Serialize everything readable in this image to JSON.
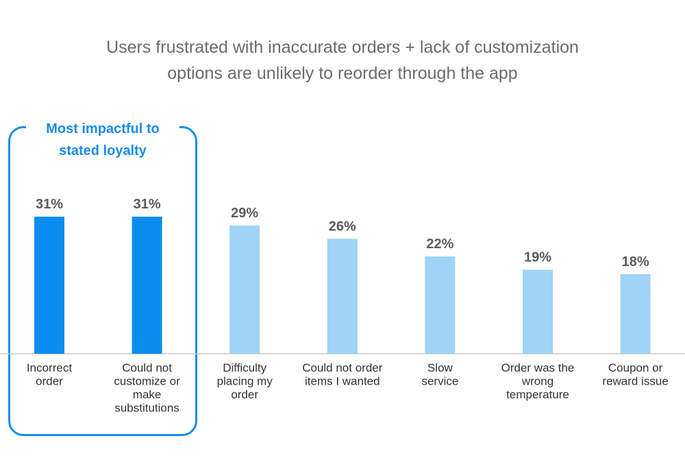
{
  "title_lines": [
    "Users frustrated with inaccurate orders + lack of customization",
    "options are unlikely to reorder through the app"
  ],
  "highlight": {
    "label_lines": [
      "Most impactful to",
      "stated loyalty"
    ],
    "color": "#1a8cea"
  },
  "colors": {
    "highlight_bar": "#0a8ded",
    "normal_bar": "#9fd3f7",
    "baseline": "#cccccc"
  },
  "chart_data": {
    "type": "bar",
    "title": "Users frustrated with inaccurate orders + lack of customization options are unlikely to reorder through the app",
    "xlabel": "",
    "ylabel": "",
    "ylim": [
      0,
      31
    ],
    "grid": false,
    "categories": [
      [
        "Incorrect",
        "order"
      ],
      [
        "Could not",
        "customize or",
        "make",
        "substitutions"
      ],
      [
        "Difficulty",
        "placing my",
        "order"
      ],
      [
        "Could not order",
        "items I wanted"
      ],
      [
        "Slow",
        "service"
      ],
      [
        "Order was the",
        "wrong",
        "temperature"
      ],
      [
        "Coupon or",
        "reward issue"
      ]
    ],
    "values": [
      31,
      31,
      29,
      26,
      22,
      19,
      18
    ],
    "value_labels": [
      "31%",
      "31%",
      "29%",
      "26%",
      "22%",
      "19%",
      "18%"
    ],
    "highlighted": [
      true,
      true,
      false,
      false,
      false,
      false,
      false
    ]
  }
}
